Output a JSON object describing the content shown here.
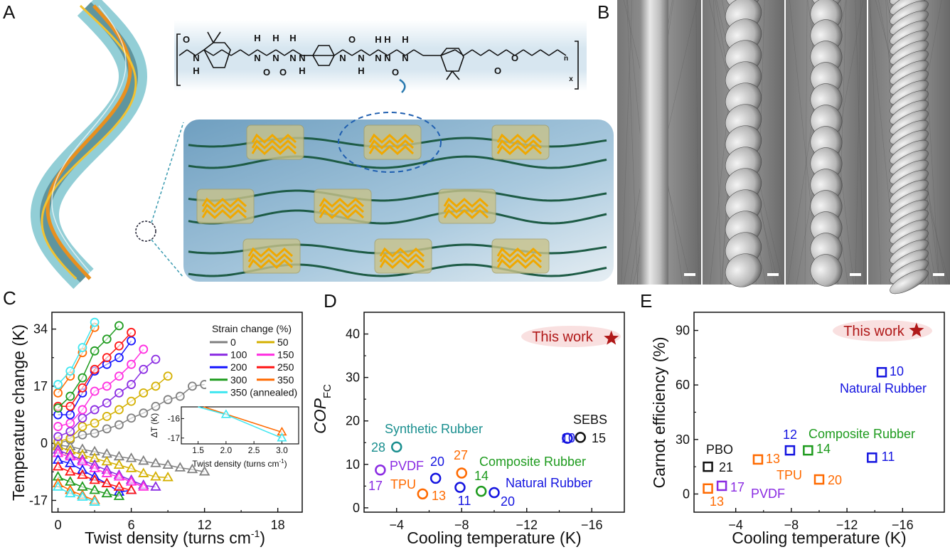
{
  "panels": {
    "a": "A",
    "b": "B",
    "c": "C",
    "d": "D",
    "e": "E"
  },
  "structure": {
    "atoms": [
      "O",
      "N",
      "H",
      "N",
      "H",
      "O",
      "N",
      "H",
      "O",
      "N",
      "H",
      "N",
      "H",
      "N",
      "O",
      "N",
      "H",
      "N",
      "H",
      "N",
      "H",
      "O",
      "N",
      "H",
      "O",
      "O",
      "n",
      "x"
    ]
  },
  "chart_data": [
    {
      "type": "scatter",
      "panel": "C",
      "xlabel": "Twist density (turns cm",
      "xlabel_sup": "-1",
      "xlabel_end": ")",
      "ylabel": "Temperature change (K)",
      "xlim": [
        -0.5,
        20
      ],
      "ylim": [
        -20.5,
        39
      ],
      "xticks": [
        "0",
        "6",
        "12",
        "18"
      ],
      "xtick_values": [
        0,
        6,
        12,
        18
      ],
      "yticks": [
        "-17",
        "0",
        "17",
        "34"
      ],
      "ytick_values": [
        -17,
        0,
        17,
        34
      ],
      "legend_title": "Strain change (%)",
      "legend_position": "top-right",
      "markers": {
        "heating": "circle",
        "cooling": "triangle"
      },
      "series": [
        {
          "name": "0",
          "color": "#808080",
          "x": [
            0,
            1,
            2,
            3,
            4,
            5,
            6,
            7,
            8,
            9,
            10,
            11,
            12
          ],
          "heating": [
            0,
            1,
            2.5,
            3,
            4.3,
            5.5,
            7.5,
            9,
            11,
            13,
            14,
            17,
            17.5
          ],
          "cooling": [
            -0.5,
            -1,
            -1.8,
            -2.5,
            -3.2,
            -4,
            -4.5,
            -5.3,
            -6,
            -6.5,
            -7.3,
            -7.8,
            -8.5
          ]
        },
        {
          "name": "50",
          "color": "#d4b000",
          "x": [
            0,
            1,
            2,
            3,
            4,
            5,
            6,
            7,
            8,
            9
          ],
          "heating": [
            0.5,
            1.5,
            5,
            6,
            8,
            10,
            12.5,
            15,
            17,
            20
          ],
          "cooling": [
            -1,
            -2.2,
            -3.5,
            -4.5,
            -5.5,
            -6.5,
            -7.5,
            -9,
            -10,
            -10.2
          ]
        },
        {
          "name": "100",
          "color": "#8a2be2",
          "x": [
            0,
            1,
            2,
            3,
            4,
            5,
            6,
            7,
            8
          ],
          "heating": [
            2,
            3.5,
            7.5,
            10,
            12,
            15,
            17.5,
            22,
            25
          ],
          "cooling": [
            -2,
            -3.5,
            -5,
            -6.5,
            -8,
            -9.5,
            -11,
            -12.5,
            -13
          ]
        },
        {
          "name": "150",
          "color": "#ff2de0",
          "x": [
            0,
            1,
            2,
            3,
            4,
            5,
            6,
            7
          ],
          "heating": [
            5,
            6,
            10,
            15.5,
            17,
            20,
            23.5,
            28
          ],
          "cooling": [
            -3,
            -4,
            -5.5,
            -7.5,
            -9,
            -10,
            -11.5,
            -13
          ]
        },
        {
          "name": "200",
          "color": "#1414ff",
          "x": [
            0,
            1,
            2,
            3,
            4,
            5,
            6
          ],
          "heating": [
            8.5,
            8.5,
            15,
            21.5,
            23.5,
            25.5,
            30.5
          ],
          "cooling": [
            -5,
            -6,
            -8,
            -10,
            -12,
            -14.5,
            -14
          ]
        },
        {
          "name": "250",
          "color": "#ff1414",
          "x": [
            0,
            1,
            2,
            3,
            4,
            5,
            6
          ],
          "heating": [
            11,
            11,
            16.5,
            22,
            25.5,
            29,
            33
          ],
          "cooling": [
            -7,
            -8.5,
            -9.5,
            -11,
            -12,
            -13,
            -14
          ]
        },
        {
          "name": "300",
          "color": "#1e9b1e",
          "x": [
            0,
            1,
            2,
            3,
            4,
            5
          ],
          "heating": [
            10.5,
            14,
            19.5,
            27.5,
            31,
            35
          ],
          "cooling": [
            -10,
            -11.5,
            -13,
            -14,
            -15,
            -15.8
          ]
        },
        {
          "name": "350",
          "color": "#ff6a00",
          "x": [
            0,
            1,
            2,
            3
          ],
          "heating": [
            15,
            20,
            27,
            34.5
          ],
          "cooling": [
            -12,
            -14,
            -15.5,
            -17
          ]
        },
        {
          "name": "350 (annealed)",
          "color": "#3fe6f0",
          "x": [
            0,
            1,
            2,
            3
          ],
          "heating": [
            17.5,
            21.5,
            28.5,
            36
          ],
          "cooling": [
            -13,
            -15,
            -16,
            -17.5
          ]
        }
      ],
      "inset": {
        "xlabel": "Twist density (turns cm",
        "xlabel_sup": "-1",
        "xlabel_end": ")",
        "ylabel": "ΔT (K)",
        "xticks": [
          "1.5",
          "2.0",
          "2.5",
          "3.0"
        ],
        "xtick_values": [
          1.5,
          2.0,
          2.5,
          3.0
        ],
        "yticks": [
          "-16",
          "-17"
        ],
        "ytick_values": [
          -16,
          -17
        ],
        "xlim": [
          1.2,
          3.3
        ],
        "ylim": [
          -17.3,
          -15.4
        ],
        "series": [
          {
            "name": "350",
            "color": "#ff6a00",
            "x": [
              1.6,
              3.0
            ],
            "y": [
              -14.8,
              -16.7
            ]
          },
          {
            "name": "350 (annealed)",
            "color": "#3fe6f0",
            "x": [
              1.5,
              2.0,
              3.0
            ],
            "y": [
              -15.2,
              -15.8,
              -17.0
            ]
          }
        ]
      }
    },
    {
      "type": "scatter",
      "panel": "D",
      "xlabel": "Cooling temperature (K)",
      "ylabel": "COP",
      "ylabel_sub": "FC",
      "xlim": [
        -2,
        -18
      ],
      "ylim": [
        -1,
        45
      ],
      "xticks": [
        "−4",
        "−8",
        "−12",
        "−16"
      ],
      "xtick_values": [
        -4,
        -8,
        -12,
        -16
      ],
      "yticks": [
        "0",
        "10",
        "20",
        "30",
        "40"
      ],
      "ytick_values": [
        0,
        10,
        20,
        30,
        40
      ],
      "marker": "circle",
      "highlight": {
        "label": "This work",
        "x": -17.2,
        "y": 39,
        "color": "#b01818",
        "marker": "star"
      },
      "points": [
        {
          "x": -15.3,
          "y": 16.2,
          "ref": "15",
          "color": "#111111"
        },
        {
          "x": -14.5,
          "y": 16.0,
          "ref": "10",
          "color": "#1414e0"
        },
        {
          "x": -4.0,
          "y": 14.0,
          "ref": "28",
          "color": "#1a8f8f"
        },
        {
          "x": -3.0,
          "y": 8.7,
          "ref": "17",
          "color": "#8a2be2"
        },
        {
          "x": -6.4,
          "y": 6.8,
          "ref": "20",
          "color": "#1414e0"
        },
        {
          "x": -5.6,
          "y": 3.2,
          "ref": "13",
          "color": "#ff6a00"
        },
        {
          "x": -8.0,
          "y": 8.0,
          "ref": "27",
          "color": "#ff6a00"
        },
        {
          "x": -7.9,
          "y": 4.7,
          "ref": "11",
          "color": "#1414e0"
        },
        {
          "x": -9.2,
          "y": 3.8,
          "ref": "14",
          "color": "#1e9b1e"
        },
        {
          "x": -10.0,
          "y": 3.5,
          "ref": "20",
          "color": "#1414e0"
        }
      ],
      "groups": [
        {
          "text": "SEBS",
          "color": "#111111"
        },
        {
          "text": "Synthetic Rubber",
          "color": "#1a8f8f"
        },
        {
          "text": "PVDF",
          "color": "#8a2be2"
        },
        {
          "text": "TPU",
          "color": "#ff6a00"
        },
        {
          "text": "Composite Rubber",
          "color": "#1e9b1e"
        },
        {
          "text": "Natural Rubber",
          "color": "#1414e0"
        }
      ]
    },
    {
      "type": "scatter",
      "panel": "E",
      "xlabel": "Cooling temperature (K)",
      "ylabel": "Carnot efficiency (%)",
      "xlim": [
        -1,
        -19
      ],
      "ylim": [
        -10,
        100
      ],
      "xticks": [
        "−4",
        "−8",
        "−12",
        "−16"
      ],
      "xtick_values": [
        -4,
        -8,
        -12,
        -16
      ],
      "yticks": [
        "0",
        "30",
        "60",
        "90"
      ],
      "ytick_values": [
        0,
        30,
        60,
        90
      ],
      "marker": "square",
      "highlight": {
        "label": "This work",
        "x": -17.0,
        "y": 90,
        "color": "#b01818",
        "marker": "star"
      },
      "points": [
        {
          "x": -14.5,
          "y": 67,
          "ref": "10",
          "color": "#1414e0"
        },
        {
          "x": -7.9,
          "y": 24,
          "ref": "12",
          "color": "#1414e0"
        },
        {
          "x": -9.2,
          "y": 24,
          "ref": "14",
          "color": "#1e9b1e"
        },
        {
          "x": -13.8,
          "y": 20,
          "ref": "11",
          "color": "#1414e0"
        },
        {
          "x": -5.6,
          "y": 19,
          "ref": "13",
          "color": "#ff6a00"
        },
        {
          "x": -10.0,
          "y": 8,
          "ref": "20",
          "color": "#ff6a00"
        },
        {
          "x": -2.0,
          "y": 15,
          "ref": "21",
          "color": "#111111"
        },
        {
          "x": -2.0,
          "y": 3,
          "ref": "13",
          "color": "#ff6a00"
        },
        {
          "x": -3.0,
          "y": 4.5,
          "ref": "17",
          "color": "#8a2be2"
        }
      ],
      "groups": [
        {
          "text": "Natural Rubber",
          "color": "#1414e0"
        },
        {
          "text": "Composite Rubber",
          "color": "#1e9b1e"
        },
        {
          "text": "PBO",
          "color": "#111111"
        },
        {
          "text": "TPU",
          "color": "#ff6a00"
        },
        {
          "text": "PVDF",
          "color": "#8a2be2"
        }
      ]
    }
  ]
}
